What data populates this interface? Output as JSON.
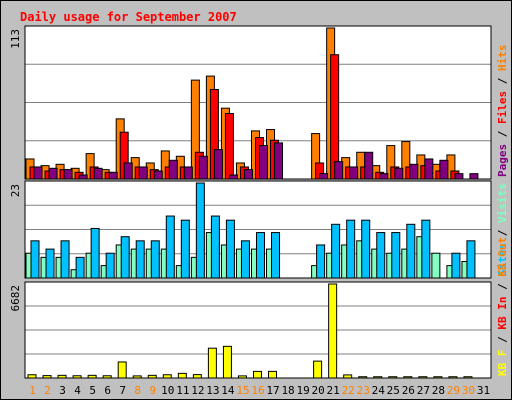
{
  "chart_data": {
    "type": "bar",
    "title": "Daily usage for September 2007",
    "days": [
      "1",
      "2",
      "3",
      "4",
      "5",
      "6",
      "7",
      "8",
      "9",
      "10",
      "11",
      "12",
      "13",
      "14",
      "15",
      "16",
      "17",
      "18",
      "19",
      "20",
      "21",
      "22",
      "23",
      "24",
      "25",
      "26",
      "27",
      "28",
      "29",
      "30",
      "31"
    ],
    "weekend_days": [
      "1",
      "2",
      "8",
      "9",
      "15",
      "16",
      "22",
      "23",
      "29",
      "30"
    ],
    "panels": [
      {
        "name": "hits-files-pages",
        "ymax_label": "113",
        "ymax": 113,
        "legend": [
          {
            "text": "Pages",
            "color": "#800080"
          },
          {
            "text": " / ",
            "color": "#000000"
          },
          {
            "text": "Files",
            "color": "#ff0000"
          },
          {
            "text": " / ",
            "color": "#000000"
          },
          {
            "text": "Hits",
            "color": "#ff8000"
          }
        ],
        "series": [
          {
            "name": "Hits",
            "color": "#ff8000",
            "values": [
              15,
              10,
              11,
              8,
              19,
              7,
              45,
              16,
              12,
              21,
              17,
              74,
              77,
              53,
              12,
              36,
              37,
              0,
              0,
              34,
              113,
              16,
              20,
              10,
              25,
              28,
              18,
              11,
              18,
              null,
              null
            ]
          },
          {
            "name": "Files",
            "color": "#ff0000",
            "values": [
              9,
              6,
              7,
              5,
              9,
              5,
              35,
              9,
              7,
              9,
              9,
              20,
              67,
              49,
              9,
              31,
              29,
              0,
              0,
              12,
              93,
              9,
              9,
              5,
              9,
              9,
              10,
              6,
              6,
              null,
              null
            ]
          },
          {
            "name": "Pages",
            "color": "#800080",
            "values": [
              9,
              8,
              7,
              3,
              8,
              5,
              12,
              9,
              6,
              14,
              9,
              17,
              22,
              3,
              7,
              25,
              27,
              0,
              0,
              4,
              13,
              9,
              20,
              4,
              8,
              11,
              15,
              14,
              4,
              4,
              null
            ]
          }
        ]
      },
      {
        "name": "visits-sites",
        "ymax_label": "23",
        "ymax": 23,
        "legend": [
          {
            "text": "Sites",
            "color": "#00c0ff"
          },
          {
            "text": " / ",
            "color": "#000000"
          },
          {
            "text": "Visits",
            "color": "#80ffc0"
          }
        ],
        "series": [
          {
            "name": "Visits",
            "color": "#80ffc0",
            "values": [
              6,
              5,
              5,
              2,
              6,
              3,
              8,
              7,
              7,
              7,
              3,
              5,
              11,
              8,
              7,
              7,
              7,
              0,
              0,
              3,
              6,
              8,
              9,
              7,
              6,
              7,
              10,
              6,
              3,
              4,
              null
            ]
          },
          {
            "name": "Sites",
            "color": "#00c0ff",
            "values": [
              9,
              7,
              9,
              5,
              12,
              6,
              10,
              9,
              9,
              15,
              14,
              23,
              15,
              14,
              9,
              11,
              11,
              0,
              0,
              8,
              13,
              14,
              14,
              11,
              11,
              13,
              14,
              0,
              6,
              9,
              null
            ]
          }
        ]
      },
      {
        "name": "kbytes",
        "ymax_label": "6682",
        "ymax": 6682,
        "legend": [
          {
            "text": "KB F",
            "color": "#ffff00"
          },
          {
            "text": " / ",
            "color": "#000000"
          },
          {
            "text": "KB In",
            "color": "#ff0000"
          },
          {
            "text": " / ",
            "color": "#000000"
          },
          {
            "text": "KB Out",
            "color": "#ff8000"
          }
        ],
        "series": [
          {
            "name": "KB F",
            "color": "#ffff00",
            "values": [
              230,
              170,
              190,
              160,
              190,
              160,
              1140,
              150,
              190,
              230,
              330,
              240,
              2120,
              2250,
              150,
              470,
              470,
              0,
              0,
              1200,
              6682,
              220,
              90,
              90,
              90,
              90,
              90,
              90,
              90,
              90,
              0
            ]
          }
        ]
      }
    ]
  }
}
